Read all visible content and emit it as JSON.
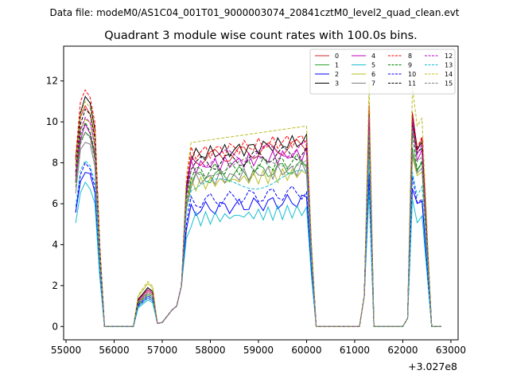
{
  "chart_data": {
    "type": "line",
    "suptitle": "Data file: modeM0/AS1C04_001T01_9000003074_20841cztM0_level2_quad_clean.evt",
    "title": "Quadrant 3 module wise count rates with 100.0s bins.",
    "xlabel": "",
    "ylabel": "",
    "offset_text": "+3.027e8",
    "xlim": [
      54950,
      63150
    ],
    "ylim": [
      -0.65,
      13.7
    ],
    "xticks": [
      55000,
      56000,
      57000,
      58000,
      59000,
      60000,
      61000,
      62000,
      63000
    ],
    "yticks": [
      0,
      2,
      4,
      6,
      8,
      10,
      12
    ],
    "x": [
      55200,
      55300,
      55400,
      55500,
      55600,
      55700,
      55800,
      55900,
      56000,
      56100,
      56200,
      56300,
      56400,
      56500,
      56600,
      56700,
      56800,
      56900,
      57000,
      57100,
      57200,
      57300,
      57400,
      57500,
      57600,
      57700,
      57800,
      57900,
      58000,
      58100,
      58200,
      58300,
      58400,
      58500,
      58600,
      58700,
      58800,
      58900,
      59000,
      59100,
      59200,
      59300,
      59400,
      59500,
      59600,
      59700,
      59800,
      59900,
      60000,
      60100,
      60200,
      60300,
      60400,
      60500,
      60600,
      60700,
      60800,
      60900,
      61000,
      61100,
      61200,
      61300,
      61400,
      61500,
      61600,
      61700,
      61800,
      61900,
      62000,
      62100,
      62200,
      62300,
      62400,
      62500,
      62600,
      62700,
      62800
    ],
    "legend_loc": "upper right",
    "legend_ncol": 4,
    "series": [
      {
        "name": "0",
        "color": "#d62728",
        "style": "solid"
      },
      {
        "name": "1",
        "color": "#2ca02c",
        "style": "solid"
      },
      {
        "name": "2",
        "color": "#0000ff",
        "style": "solid"
      },
      {
        "name": "3",
        "color": "#000000",
        "style": "solid"
      },
      {
        "name": "4",
        "color": "#bf00bf",
        "style": "solid"
      },
      {
        "name": "5",
        "color": "#17becf",
        "style": "solid"
      },
      {
        "name": "6",
        "color": "#bcbd22",
        "style": "solid"
      },
      {
        "name": "7",
        "color": "#7f7f7f",
        "style": "solid"
      },
      {
        "name": "8",
        "color": "#ff0000",
        "style": "dashed"
      },
      {
        "name": "9",
        "color": "#008000",
        "style": "dashed"
      },
      {
        "name": "10",
        "color": "#0000ff",
        "style": "dashed"
      },
      {
        "name": "11",
        "color": "#000000",
        "style": "dashed"
      },
      {
        "name": "12",
        "color": "#bf00bf",
        "style": "dashed"
      },
      {
        "name": "13",
        "color": "#17becf",
        "style": "dashed"
      },
      {
        "name": "14",
        "color": "#bcbd22",
        "style": "dashed"
      },
      {
        "name": "15",
        "color": "#7f7f7f",
        "style": "dashed"
      }
    ]
  }
}
